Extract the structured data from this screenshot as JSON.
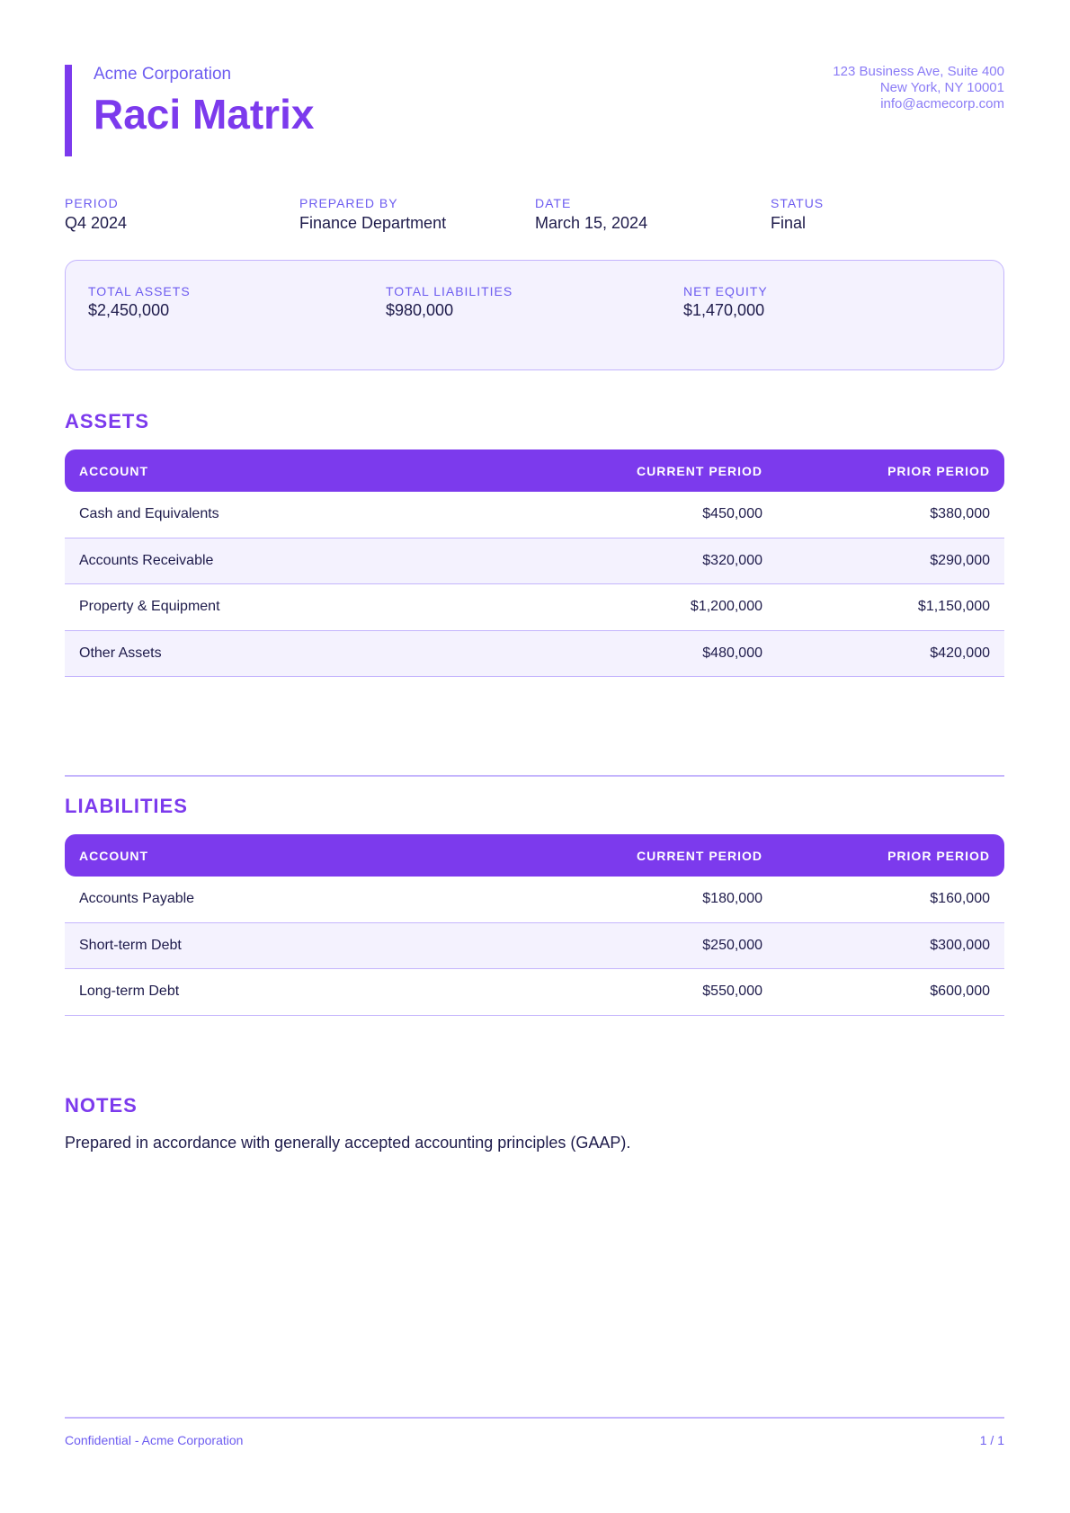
{
  "header": {
    "company": "Acme Corporation",
    "title": "Raci Matrix",
    "address": [
      "123 Business Ave, Suite 400",
      "New York, NY 10001",
      "info@acmecorp.com"
    ]
  },
  "meta": [
    {
      "label": "PERIOD",
      "value": "Q4 2024"
    },
    {
      "label": "PREPARED BY",
      "value": "Finance Department"
    },
    {
      "label": "DATE",
      "value": "March 15, 2024"
    },
    {
      "label": "STATUS",
      "value": "Final"
    }
  ],
  "summary": [
    {
      "label": "TOTAL ASSETS",
      "value": "$2,450,000"
    },
    {
      "label": "TOTAL LIABILITIES",
      "value": "$980,000"
    },
    {
      "label": "NET EQUITY",
      "value": "$1,470,000"
    }
  ],
  "assets": {
    "heading": "ASSETS",
    "columns": [
      "ACCOUNT",
      "CURRENT PERIOD",
      "PRIOR PERIOD"
    ],
    "rows": [
      [
        "Cash and Equivalents",
        "$450,000",
        "$380,000"
      ],
      [
        "Accounts Receivable",
        "$320,000",
        "$290,000"
      ],
      [
        "Property & Equipment",
        "$1,200,000",
        "$1,150,000"
      ],
      [
        "Other Assets",
        "$480,000",
        "$420,000"
      ]
    ]
  },
  "liabilities": {
    "heading": "LIABILITIES",
    "columns": [
      "ACCOUNT",
      "CURRENT PERIOD",
      "PRIOR PERIOD"
    ],
    "rows": [
      [
        "Accounts Payable",
        "$180,000",
        "$160,000"
      ],
      [
        "Short-term Debt",
        "$250,000",
        "$300,000"
      ],
      [
        "Long-term Debt",
        "$550,000",
        "$600,000"
      ]
    ]
  },
  "notes": {
    "heading": "NOTES",
    "text": "Prepared in accordance with generally accepted accounting principles (GAAP)."
  },
  "footer": {
    "left": "Confidential - Acme Corporation",
    "right": "1 / 1"
  },
  "colors": {
    "accent": "#7c3aed",
    "label": "#6d5cf0",
    "border": "#c4b5fd",
    "stripe": "#f4f2fe"
  }
}
